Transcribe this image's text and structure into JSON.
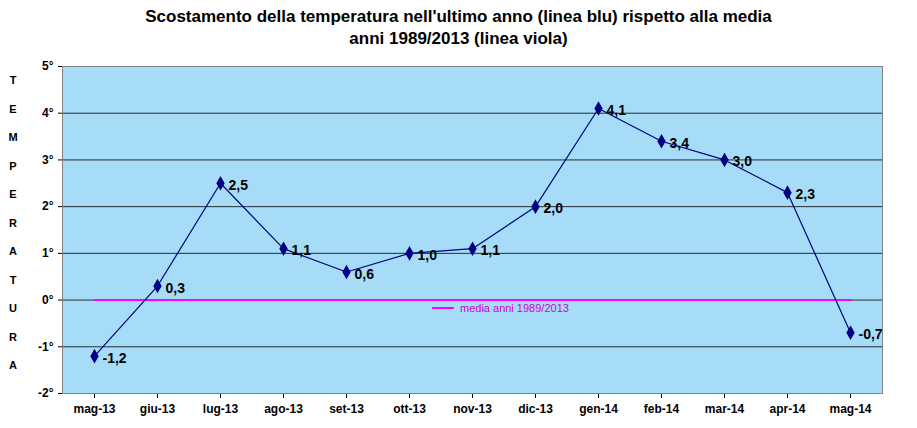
{
  "chart_data": {
    "type": "line",
    "title": "Scostamento della temperatura nell'ultimo anno (linea blu) rispetto alla media",
    "subtitle": "anni 1989/2013 (linea viola)",
    "y_label": "TEMPERATURA",
    "categories": [
      "mag-13",
      "giu-13",
      "lug-13",
      "ago-13",
      "set-13",
      "ott-13",
      "nov-13",
      "dic-13",
      "gen-14",
      "feb-14",
      "mar-14",
      "apr-14",
      "mag-14"
    ],
    "series": [
      {
        "color": "#000080",
        "marker": "diamond",
        "line_style": "solid",
        "values": [
          -1.2,
          0.3,
          2.5,
          1.1,
          0.6,
          1.0,
          1.1,
          2.0,
          4.1,
          3.4,
          3.0,
          2.3,
          -0.7
        ],
        "value_labels": [
          "-1,2",
          "0,3",
          "2,5",
          "1,1",
          "0,6",
          "1,0",
          "1,1",
          "2,0",
          "4,1",
          "3,4",
          "3,0",
          "2,3",
          "-0,7"
        ]
      },
      {
        "name": "media anni 1989/2013",
        "color": "#ff00ff",
        "line_style": "solid",
        "values": [
          0,
          0,
          0,
          0,
          0,
          0,
          0,
          0,
          0,
          0,
          0,
          0,
          0
        ]
      }
    ],
    "ylim": [
      -2,
      5
    ],
    "yticks": [
      {
        "value": -2,
        "label": "-2°"
      },
      {
        "value": -1,
        "label": "-1°"
      },
      {
        "value": 0,
        "label": "0°"
      },
      {
        "value": 1,
        "label": "1°"
      },
      {
        "value": 2,
        "label": "2°"
      },
      {
        "value": 3,
        "label": "3°"
      },
      {
        "value": 4,
        "label": "4°"
      },
      {
        "value": 5,
        "label": "5°"
      }
    ],
    "grid": true,
    "data_labels": true,
    "legend": "center"
  }
}
